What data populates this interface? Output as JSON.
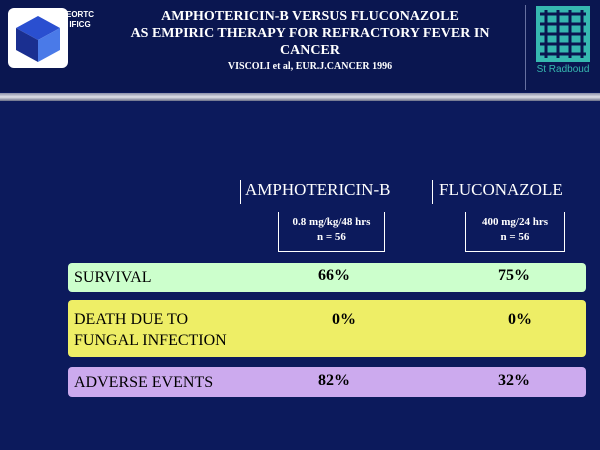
{
  "header": {
    "logo_left": [
      "EORTC",
      "IFICG"
    ],
    "title_lines": [
      "AMPHOTERICIN-B VERSUS FLUCONAZOLE",
      "AS EMPIRIC THERAPY FOR REFRACTORY FEVER IN",
      "CANCER"
    ],
    "citation": "VISCOLI et al, EUR.J.CANCER 1996",
    "logo_right": "St Radboud"
  },
  "table": {
    "columns": [
      {
        "name": "AMPHOTERICIN-B",
        "dose": [
          "0.8 mg/kg/48 hrs",
          "n = 56"
        ]
      },
      {
        "name": "FLUCONAZOLE",
        "dose": [
          "400 mg/24 hrs",
          "n = 56"
        ]
      }
    ],
    "rows": [
      {
        "label": [
          "SURVIVAL"
        ],
        "values": [
          "66%",
          "75%"
        ]
      },
      {
        "label": [
          "DEATH DUE TO",
          "FUNGAL INFECTION"
        ],
        "values": [
          "0%",
          "0%"
        ]
      },
      {
        "label": [
          "ADVERSE EVENTS"
        ],
        "values": [
          "82%",
          "32%"
        ]
      }
    ]
  }
}
